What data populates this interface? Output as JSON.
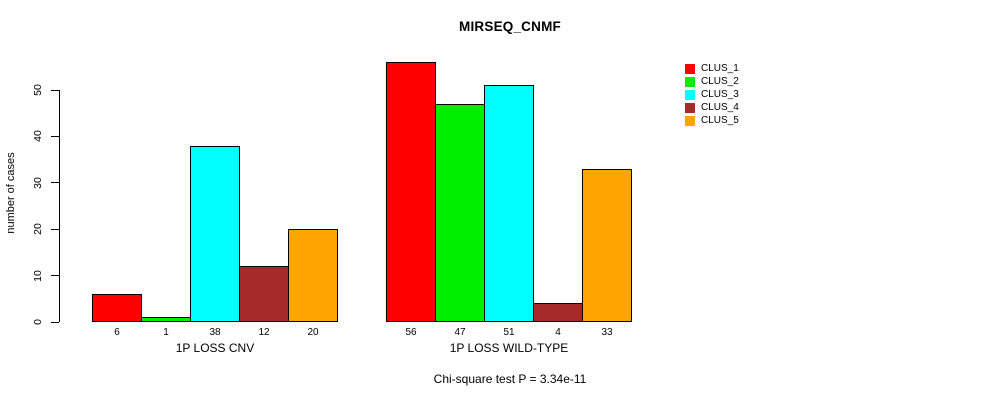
{
  "title": "MIRSEQ_CNMF",
  "chart_data": {
    "type": "bar",
    "title": "MIRSEQ_CNMF",
    "ylabel": "number of cases",
    "xlabel": "",
    "yticks": [
      0,
      10,
      20,
      30,
      40,
      50
    ],
    "ylim": [
      0,
      58
    ],
    "grid": false,
    "legend_position": "right",
    "series_names": [
      "CLUS_1",
      "CLUS_2",
      "CLUS_3",
      "CLUS_4",
      "CLUS_5"
    ],
    "series_colors": [
      "#ff0000",
      "#00ee00",
      "#00ffff",
      "#a52a2a",
      "#ffa500"
    ],
    "groups": [
      {
        "label": "1P LOSS CNV",
        "values": [
          6,
          1,
          38,
          12,
          20
        ]
      },
      {
        "label": "1P LOSS WILD-TYPE",
        "values": [
          56,
          47,
          51,
          4,
          33
        ]
      }
    ],
    "footnote": "Chi-square test P = 3.34e-11"
  }
}
